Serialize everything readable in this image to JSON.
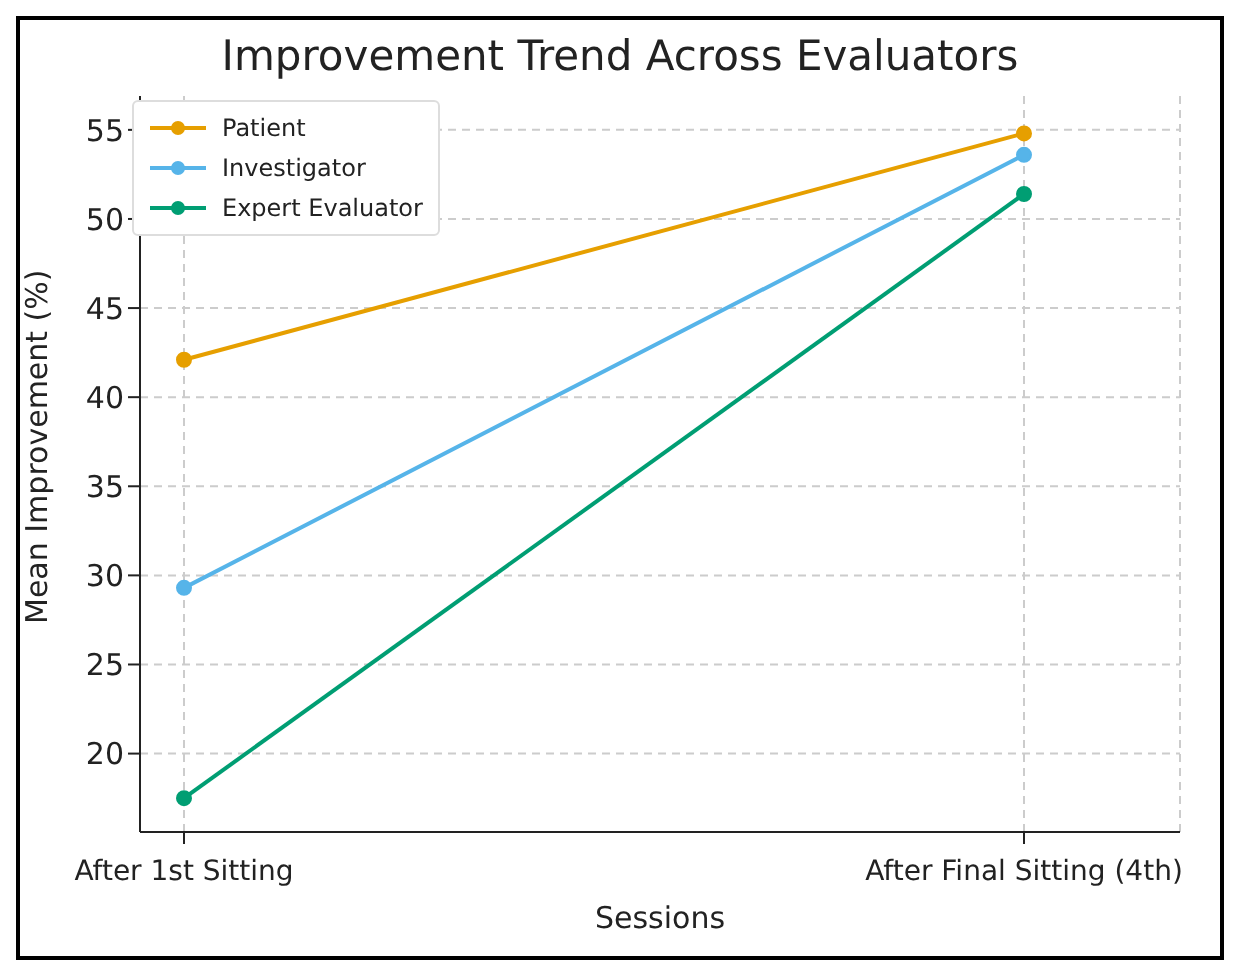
{
  "chart_data": {
    "type": "line",
    "title": "Improvement Trend Across Evaluators",
    "xlabel": "Sessions",
    "ylabel": "Mean Improvement (%)",
    "categories": [
      "After 1st Sitting",
      "After Final Sitting (4th)"
    ],
    "series": [
      {
        "name": "Patient",
        "color": "#e69f00",
        "values": [
          42.1,
          54.8
        ]
      },
      {
        "name": "Investigator",
        "color": "#56b4e9",
        "values": [
          29.3,
          53.6
        ]
      },
      {
        "name": "Expert Evaluator",
        "color": "#009e73",
        "values": [
          17.5,
          51.4
        ]
      }
    ],
    "ylim": [
      15.6,
      56.9
    ],
    "yticks": [
      20,
      25,
      30,
      35,
      40,
      45,
      50,
      55
    ],
    "grid": true,
    "legend": "top left",
    "marker": "circle",
    "line_style": "solid"
  }
}
